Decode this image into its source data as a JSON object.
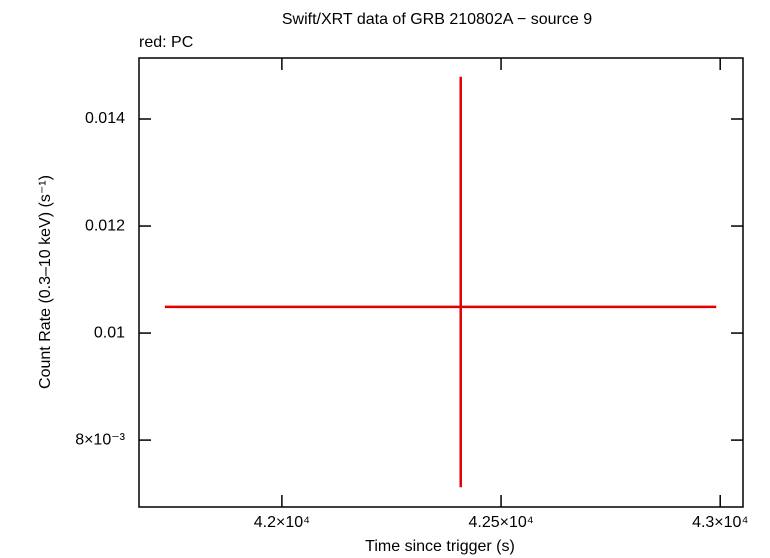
{
  "chart_data": {
    "type": "errorbar",
    "title": "Swift/XRT data of GRB 210802A − source 9",
    "subtitle": "red: PC",
    "x_label": "Time since trigger (s)",
    "y_label": "Count Rate (0.3–10 keV) (s⁻¹)",
    "x": [
      42408
    ],
    "values": [
      0.01049
    ],
    "xerr_low": [
      675
    ],
    "xerr_high": [
      583
    ],
    "yerr_low": [
      0.00337
    ],
    "yerr_high": [
      0.0043
    ],
    "color": "#e00000",
    "xlim": [
      41674,
      43052
    ],
    "xticks": [
      {
        "value": 42000,
        "label": "4.2×10⁴"
      },
      {
        "value": 42500,
        "label": "4.25×10⁴"
      },
      {
        "value": 43000,
        "label": "4.3×10⁴"
      }
    ],
    "ylim": [
      0.00675,
      0.01514
    ],
    "yticks": [
      {
        "value": 0.008,
        "label": "8×10⁻³"
      },
      0.01,
      0.012,
      0.014
    ]
  }
}
